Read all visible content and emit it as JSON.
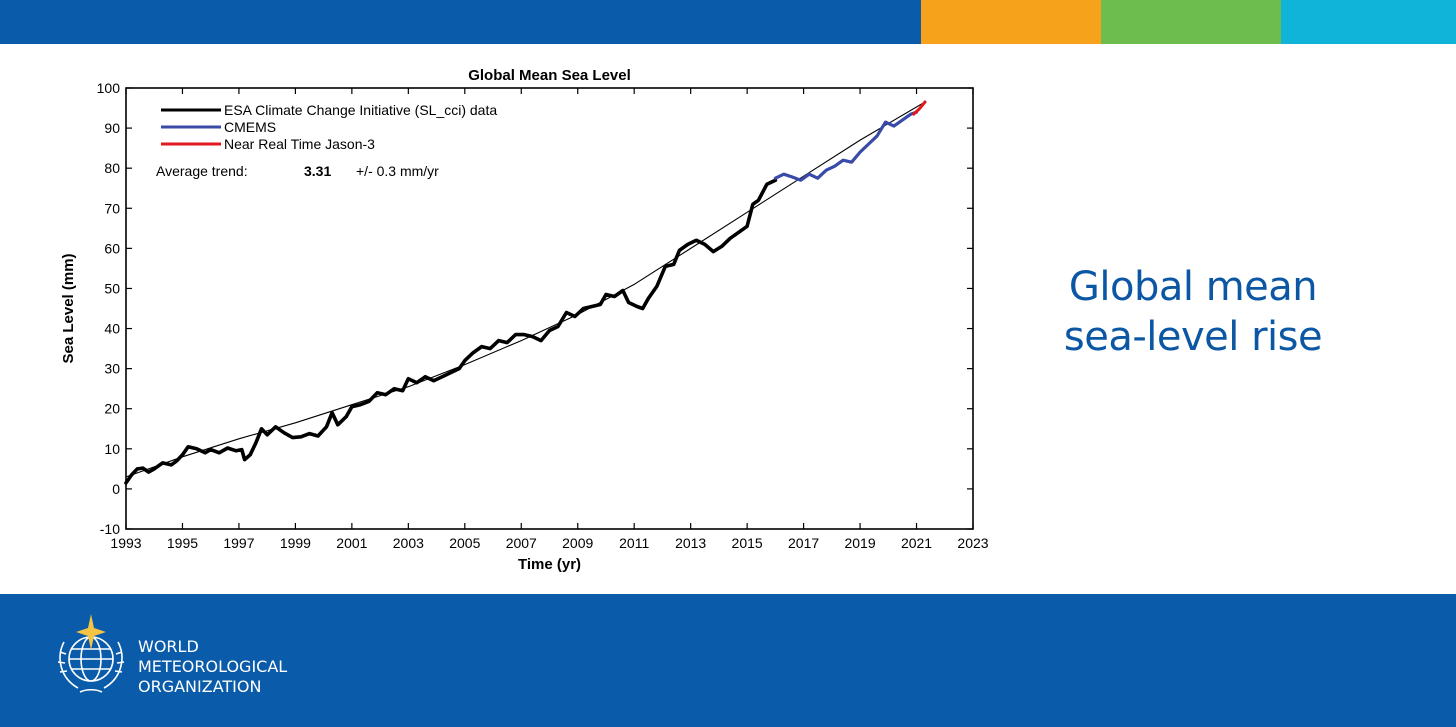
{
  "colors": {
    "top_blue": "#0a5ba9",
    "top_orange": "#f6a31b",
    "top_green": "#6cbd4e",
    "top_cyan": "#10b4d8",
    "bottom_blue": "#0a5ba9",
    "headline": "#0b57a4",
    "series_esa": "#000000",
    "series_cmems": "#3a4aa8",
    "series_jason": "#e3181f",
    "trend": "#000000"
  },
  "headline": {
    "line1": "Global mean",
    "line2": "sea-level rise"
  },
  "organization": {
    "line1": "WORLD",
    "line2": "METEOROLOGICAL",
    "line3": "ORGANIZATION",
    "emblem_icon": "wmo-emblem-icon"
  },
  "chart_data": {
    "type": "line",
    "title": "Global Mean Sea Level",
    "xlabel": "Time (yr)",
    "ylabel": "Sea Level (mm)",
    "xlim": [
      1993,
      2023
    ],
    "ylim": [
      -10,
      100
    ],
    "xticks": [
      1993,
      1995,
      1997,
      1999,
      2001,
      2003,
      2005,
      2007,
      2009,
      2011,
      2013,
      2015,
      2017,
      2019,
      2021,
      2023
    ],
    "yticks": [
      -10,
      0,
      10,
      20,
      30,
      40,
      50,
      60,
      70,
      80,
      90,
      100
    ],
    "grid": false,
    "legend_position": "top-left",
    "annotation": {
      "label": "Average trend:",
      "value": "3.31",
      "unit": "+/- 0.3 mm/yr"
    },
    "trend_curve": [
      [
        1993,
        3
      ],
      [
        1995,
        8
      ],
      [
        1997,
        12.5
      ],
      [
        1999,
        16.5
      ],
      [
        2001,
        21
      ],
      [
        2003,
        25.5
      ],
      [
        2005,
        31
      ],
      [
        2007,
        37
      ],
      [
        2009,
        43.5
      ],
      [
        2011,
        51
      ],
      [
        2013,
        60
      ],
      [
        2015,
        69
      ],
      [
        2017,
        78
      ],
      [
        2019,
        87
      ],
      [
        2021.3,
        96.5
      ]
    ],
    "series": [
      {
        "name": "ESA Climate Change Initiative (SL_cci) data",
        "points": [
          [
            1993,
            1.5
          ],
          [
            1993.2,
            3.5
          ],
          [
            1993.4,
            5
          ],
          [
            1993.6,
            5.2
          ],
          [
            1993.8,
            4.2
          ],
          [
            1994.0,
            5
          ],
          [
            1994.3,
            6.5
          ],
          [
            1994.6,
            6
          ],
          [
            1994.8,
            7
          ],
          [
            1995.0,
            8.5
          ],
          [
            1995.2,
            10.5
          ],
          [
            1995.5,
            10
          ],
          [
            1995.8,
            9
          ],
          [
            1996.0,
            9.8
          ],
          [
            1996.3,
            9
          ],
          [
            1996.6,
            10.2
          ],
          [
            1996.9,
            9.5
          ],
          [
            1997.1,
            9.8
          ],
          [
            1997.2,
            7.3
          ],
          [
            1997.4,
            8.5
          ],
          [
            1997.6,
            11.5
          ],
          [
            1997.8,
            15
          ],
          [
            1998.0,
            13.5
          ],
          [
            1998.3,
            15.5
          ],
          [
            1998.6,
            14
          ],
          [
            1998.9,
            12.8
          ],
          [
            1999.2,
            13
          ],
          [
            1999.5,
            13.8
          ],
          [
            1999.8,
            13.2
          ],
          [
            2000.1,
            15.5
          ],
          [
            2000.3,
            19
          ],
          [
            2000.5,
            16
          ],
          [
            2000.8,
            18
          ],
          [
            2001.0,
            20.5
          ],
          [
            2001.3,
            21
          ],
          [
            2001.6,
            21.8
          ],
          [
            2001.9,
            24
          ],
          [
            2002.2,
            23.5
          ],
          [
            2002.5,
            25
          ],
          [
            2002.8,
            24.5
          ],
          [
            2003.0,
            27.5
          ],
          [
            2003.3,
            26.5
          ],
          [
            2003.6,
            28
          ],
          [
            2003.9,
            27
          ],
          [
            2004.2,
            28
          ],
          [
            2004.5,
            29
          ],
          [
            2004.8,
            30
          ],
          [
            2005.0,
            32
          ],
          [
            2005.3,
            34
          ],
          [
            2005.6,
            35.5
          ],
          [
            2005.9,
            35
          ],
          [
            2006.2,
            37
          ],
          [
            2006.5,
            36.5
          ],
          [
            2006.8,
            38.5
          ],
          [
            2007.1,
            38.5
          ],
          [
            2007.4,
            38
          ],
          [
            2007.7,
            37
          ],
          [
            2008.0,
            39.5
          ],
          [
            2008.3,
            40.5
          ],
          [
            2008.6,
            44
          ],
          [
            2008.9,
            43
          ],
          [
            2009.2,
            45
          ],
          [
            2009.5,
            45.5
          ],
          [
            2009.8,
            46
          ],
          [
            2010.0,
            48.5
          ],
          [
            2010.3,
            48
          ],
          [
            2010.6,
            49.5
          ],
          [
            2010.8,
            46.5
          ],
          [
            2011.1,
            45.5
          ],
          [
            2011.3,
            45
          ],
          [
            2011.5,
            47.5
          ],
          [
            2011.8,
            50.5
          ],
          [
            2012.1,
            55.5
          ],
          [
            2012.4,
            56
          ],
          [
            2012.6,
            59.5
          ],
          [
            2012.9,
            61
          ],
          [
            2013.2,
            62
          ],
          [
            2013.5,
            61
          ],
          [
            2013.8,
            59.2
          ],
          [
            2014.1,
            60.5
          ],
          [
            2014.4,
            62.5
          ],
          [
            2014.7,
            64
          ],
          [
            2015.0,
            65.5
          ],
          [
            2015.2,
            71
          ],
          [
            2015.4,
            72
          ],
          [
            2015.7,
            76
          ],
          [
            2016.0,
            77
          ]
        ]
      },
      {
        "name": "CMEMS",
        "points": [
          [
            2016.0,
            77.5
          ],
          [
            2016.3,
            78.5
          ],
          [
            2016.6,
            77.8
          ],
          [
            2016.9,
            77
          ],
          [
            2017.2,
            78.5
          ],
          [
            2017.5,
            77.5
          ],
          [
            2017.8,
            79.5
          ],
          [
            2018.1,
            80.5
          ],
          [
            2018.4,
            82
          ],
          [
            2018.7,
            81.5
          ],
          [
            2019.0,
            84
          ],
          [
            2019.3,
            86
          ],
          [
            2019.6,
            88
          ],
          [
            2019.9,
            91.5
          ],
          [
            2020.2,
            90.5
          ],
          [
            2020.5,
            92
          ],
          [
            2020.8,
            93.5
          ],
          [
            2021.0,
            94
          ]
        ]
      },
      {
        "name": "Near Real Time Jason-3",
        "points": [
          [
            2020.9,
            93.5
          ],
          [
            2021.1,
            94.8
          ],
          [
            2021.3,
            96.5
          ]
        ]
      }
    ]
  }
}
